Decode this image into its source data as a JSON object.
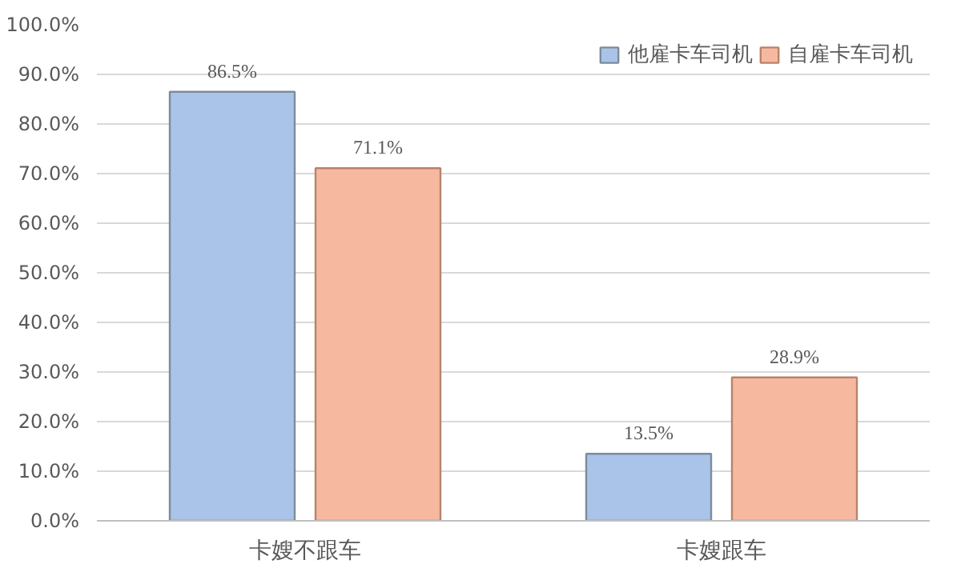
{
  "chart_data": {
    "type": "bar",
    "categories": [
      "卡嫂不跟车",
      "卡嫂跟车"
    ],
    "series": [
      {
        "name": "他雇卡车司机",
        "color": "#a9c4e8",
        "values": [
          86.5,
          13.5
        ],
        "value_labels": [
          "86.5%",
          "13.5%"
        ]
      },
      {
        "name": "自雇卡车司机",
        "color": "#f6b9a0",
        "values": [
          71.1,
          28.9
        ],
        "value_labels": [
          "71.1%",
          "28.9%"
        ]
      }
    ],
    "ylim": [
      0,
      100
    ],
    "yticks": [
      {
        "value": 0,
        "label": "0.0%"
      },
      {
        "value": 10,
        "label": "10.0%"
      },
      {
        "value": 20,
        "label": "20.0%"
      },
      {
        "value": 30,
        "label": "30.0%"
      },
      {
        "value": 40,
        "label": "40.0%"
      },
      {
        "value": 50,
        "label": "50.0%"
      },
      {
        "value": 60,
        "label": "60.0%"
      },
      {
        "value": 70,
        "label": "70.0%"
      },
      {
        "value": 80,
        "label": "80.0%"
      },
      {
        "value": 90,
        "label": "90.0%"
      },
      {
        "value": 100,
        "label": "100.0%"
      }
    ],
    "grid": "y",
    "legend": "top right"
  }
}
